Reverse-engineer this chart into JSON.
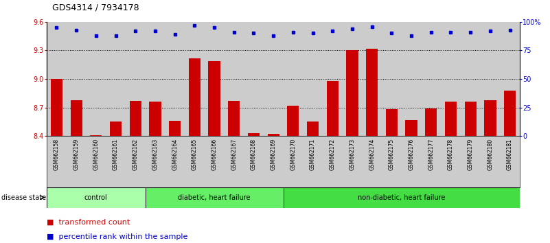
{
  "title": "GDS4314 / 7934178",
  "samples": [
    "GSM662158",
    "GSM662159",
    "GSM662160",
    "GSM662161",
    "GSM662162",
    "GSM662163",
    "GSM662164",
    "GSM662165",
    "GSM662166",
    "GSM662167",
    "GSM662168",
    "GSM662169",
    "GSM662170",
    "GSM662171",
    "GSM662172",
    "GSM662173",
    "GSM662174",
    "GSM662175",
    "GSM662176",
    "GSM662177",
    "GSM662178",
    "GSM662179",
    "GSM662180",
    "GSM662181"
  ],
  "bar_values": [
    9.0,
    8.78,
    8.41,
    8.55,
    8.77,
    8.76,
    8.56,
    9.22,
    9.19,
    8.77,
    8.43,
    8.42,
    8.72,
    8.55,
    8.98,
    9.3,
    9.32,
    8.68,
    8.57,
    8.69,
    8.76,
    8.76,
    8.78,
    8.88
  ],
  "percentile_values": [
    95,
    93,
    88,
    88,
    92,
    92,
    89,
    97,
    95,
    91,
    90,
    88,
    91,
    90,
    92,
    94,
    96,
    90,
    88,
    91,
    91,
    91,
    92,
    93
  ],
  "groups": [
    {
      "label": "control",
      "start": 0,
      "end": 4,
      "color": "#aaffaa"
    },
    {
      "label": "diabetic, heart failure",
      "start": 5,
      "end": 11,
      "color": "#66ee66"
    },
    {
      "label": "non-diabetic, heart failure",
      "start": 12,
      "end": 23,
      "color": "#44dd44"
    }
  ],
  "bar_color": "#cc0000",
  "dot_color": "#0000cc",
  "ylim_left": [
    8.4,
    9.6
  ],
  "ylim_right": [
    0,
    100
  ],
  "yticks_left": [
    8.4,
    8.7,
    9.0,
    9.3,
    9.6
  ],
  "yticks_right": [
    0,
    25,
    50,
    75,
    100
  ],
  "ytick_labels_right": [
    "0",
    "25",
    "50",
    "75",
    "100%"
  ],
  "grid_values": [
    8.7,
    9.0,
    9.3
  ],
  "plot_bg": "#cccccc",
  "fig_bg": "#ffffff",
  "group_bg": "#aaffaa",
  "title_fontsize": 9,
  "tick_fontsize": 6,
  "legend_fontsize": 8
}
